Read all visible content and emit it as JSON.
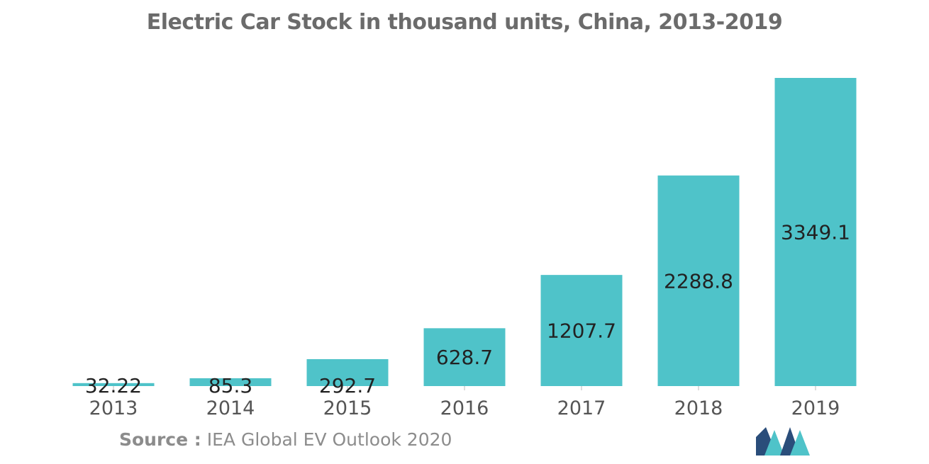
{
  "chart_data": {
    "type": "bar",
    "title": "Electric Car Stock in thousand units, China, 2013-2019",
    "categories": [
      "2013",
      "2014",
      "2015",
      "2016",
      "2017",
      "2018",
      "2019"
    ],
    "values": [
      32.22,
      85.3,
      292.7,
      628.7,
      1207.7,
      2288.8,
      3349.1
    ],
    "value_labels": [
      "32.22",
      "85.3",
      "292.7",
      "628.7",
      "1207.7",
      "2288.8",
      "3349.1"
    ],
    "xlabel": "",
    "ylabel": "",
    "ylim": [
      0,
      3349.1
    ],
    "grid": false,
    "legend": "none",
    "bar_color": "#4fc3c9"
  },
  "source": {
    "label": "Source :",
    "text": "IEA Global EV Outlook 2020"
  },
  "colors": {
    "bar": "#4fc3c9",
    "title": "#6b6b6b",
    "value_label": "#222222",
    "tick_label": "#555555",
    "logo_dark": "#2a4d7a",
    "logo_light": "#4fc3c9"
  }
}
